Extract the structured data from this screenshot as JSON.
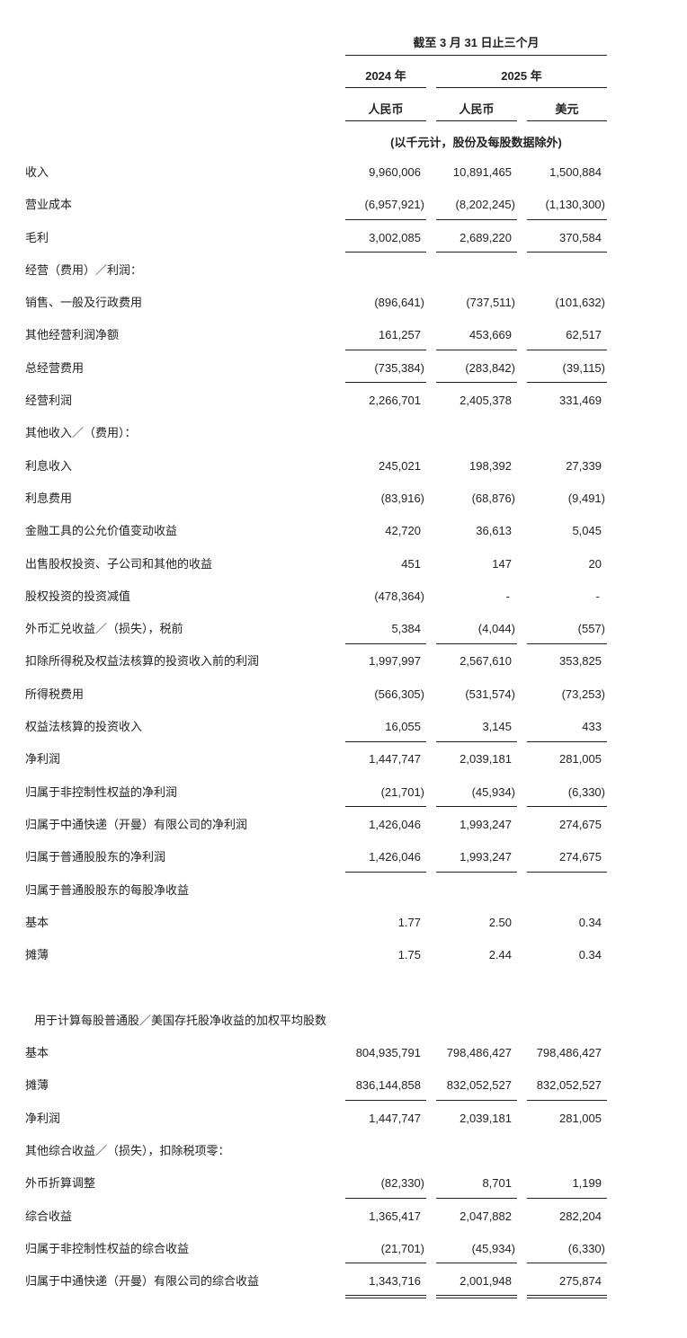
{
  "header": {
    "period": "截至 3 月 31 日止三个月",
    "years": [
      "2024 年",
      "2025 年"
    ],
    "currencies": [
      "人民币",
      "人民币",
      "美元"
    ],
    "note": "(以千元计，股份及每股数据除外)"
  },
  "rows": [
    {
      "label": "收入",
      "values": [
        "9,960,006",
        "10,891,465",
        "1,500,884"
      ]
    },
    {
      "label": "营业成本",
      "values": [
        "(6,957,921)",
        "(8,202,245)",
        "(1,130,300)"
      ],
      "rule": "single"
    },
    {
      "label": "毛利",
      "values": [
        "3,002,085",
        "2,689,220",
        "370,584"
      ],
      "rule": "single"
    },
    {
      "label": "经营（费用）／利润：",
      "values": []
    },
    {
      "label": "销售、一般及行政费用",
      "values": [
        "(896,641)",
        "(737,511)",
        "(101,632)"
      ]
    },
    {
      "label": "其他经营利润净额",
      "values": [
        "161,257",
        "453,669",
        "62,517"
      ],
      "rule": "single"
    },
    {
      "label": "总经营费用",
      "values": [
        "(735,384)",
        "(283,842)",
        "(39,115)"
      ],
      "rule": "single"
    },
    {
      "label": "经营利润",
      "values": [
        "2,266,701",
        "2,405,378",
        "331,469"
      ]
    },
    {
      "label": "其他收入／（费用）：",
      "values": []
    },
    {
      "label": "利息收入",
      "values": [
        "245,021",
        "198,392",
        "27,339"
      ]
    },
    {
      "label": "利息费用",
      "values": [
        "(83,916)",
        "(68,876)",
        "(9,491)"
      ]
    },
    {
      "label": "金融工具的公允价值变动收益",
      "values": [
        "42,720",
        "36,613",
        "5,045"
      ]
    },
    {
      "label": "出售股权投资、子公司和其他的收益",
      "values": [
        "451",
        "147",
        "20"
      ]
    },
    {
      "label": "股权投资的投资减值",
      "values": [
        "(478,364)",
        "-",
        "-"
      ]
    },
    {
      "label": "外币汇兑收益／（损失），税前",
      "values": [
        "5,384",
        "(4,044)",
        "(557)"
      ],
      "rule": "single"
    },
    {
      "label": "扣除所得税及权益法核算的投资收入前的利润",
      "values": [
        "1,997,997",
        "2,567,610",
        "353,825"
      ]
    },
    {
      "label": "所得税费用",
      "values": [
        "(566,305)",
        "(531,574)",
        "(73,253)"
      ]
    },
    {
      "label": "权益法核算的投资收入",
      "values": [
        "16,055",
        "3,145",
        "433"
      ],
      "rule": "single"
    },
    {
      "label": "净利润",
      "values": [
        "1,447,747",
        "2,039,181",
        "281,005"
      ]
    },
    {
      "label": "归属于非控制性权益的净利润",
      "values": [
        "(21,701)",
        "(45,934)",
        "(6,330)"
      ],
      "rule": "single"
    },
    {
      "label": "归属于中通快递（开曼）有限公司的净利润",
      "values": [
        "1,426,046",
        "1,993,247",
        "274,675"
      ]
    },
    {
      "label": "归属于普通股股东的净利润",
      "values": [
        "1,426,046",
        "1,993,247",
        "274,675"
      ],
      "rule": "single"
    },
    {
      "label": "归属于普通股股东的每股净收益",
      "values": []
    },
    {
      "label": "基本",
      "values": [
        "1.77",
        "2.50",
        "0.34"
      ]
    },
    {
      "label": "摊薄",
      "values": [
        "1.75",
        "2.44",
        "0.34"
      ]
    },
    {
      "spacer": true
    },
    {
      "label": "用于计算每股普通股／美国存托股净收益的加权平均股数",
      "values": [],
      "indent": true
    },
    {
      "label": "基本",
      "values": [
        "804,935,791",
        "798,486,427",
        "798,486,427"
      ]
    },
    {
      "label": "摊薄",
      "values": [
        "836,144,858",
        "832,052,527",
        "832,052,527"
      ],
      "rule": "single"
    },
    {
      "label": "净利润",
      "values": [
        "1,447,747",
        "2,039,181",
        "281,005"
      ]
    },
    {
      "label": "其他综合收益／（损失），扣除税项零：",
      "values": []
    },
    {
      "label": "外币折算调整",
      "values": [
        "(82,330)",
        "8,701",
        "1,199"
      ],
      "rule": "single"
    },
    {
      "label": "综合收益",
      "values": [
        "1,365,417",
        "2,047,882",
        "282,204"
      ]
    },
    {
      "label": "归属于非控制性权益的综合收益",
      "values": [
        "(21,701)",
        "(45,934)",
        "(6,330)"
      ],
      "rule": "single"
    },
    {
      "label": "归属于中通快递（开曼）有限公司的综合收益",
      "values": [
        "1,343,716",
        "2,001,948",
        "275,874"
      ],
      "rule": "double"
    }
  ]
}
